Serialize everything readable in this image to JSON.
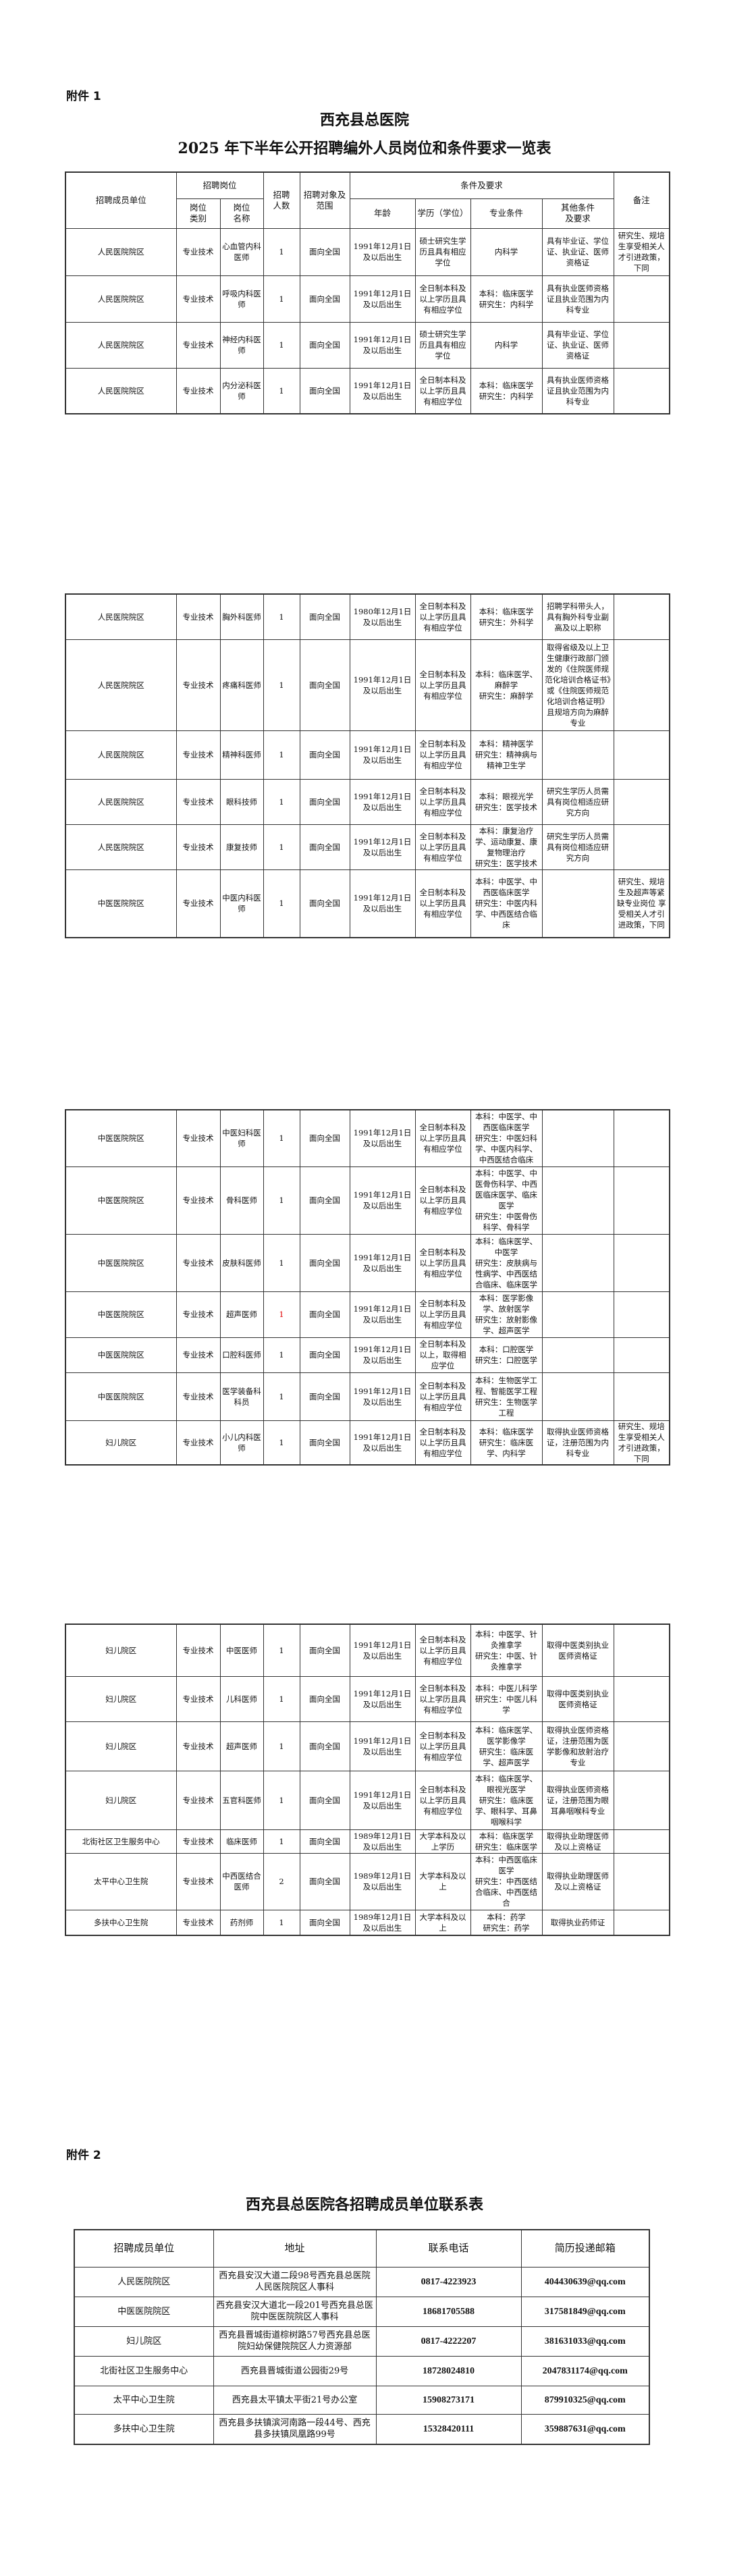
{
  "annex1": {
    "label": "附件 1",
    "title": "西充县总医院",
    "subtitle": "2025 年下半年公开招聘编外人员岗位和条件要求一览表",
    "headers": {
      "unit": "招聘成员单位",
      "post": "招聘岗位",
      "post_type": "岗位\n类别",
      "post_name": "岗位\n名称",
      "count": "招聘\n人数",
      "scope": "招聘对象及\n范围",
      "conditions": "条件及要求",
      "age": "年龄",
      "education": "学历（学位）",
      "major": "专业条件",
      "other": "其他条件\n及要求",
      "note": "备注"
    },
    "pages": [
      [
        {
          "unit": "人民医院院区",
          "type": "专业技术",
          "name": "心血管内科医师",
          "count": "1",
          "scope": "面向全国",
          "age": "1991年12月1日及以后出生",
          "edu": "硕士研究生学历且具有相应学位",
          "major": "内科学",
          "other": "具有毕业证、学位证、执业证、医师资格证",
          "note": "研究生、规培生享受相关人才引进政策，下同"
        },
        {
          "unit": "人民医院院区",
          "type": "专业技术",
          "name": "呼吸内科医师",
          "count": "1",
          "scope": "面向全国",
          "age": "1991年12月1日及以后出生",
          "edu": "全日制本科及以上学历且具有相应学位",
          "major": "本科：临床医学\n研究生：内科学",
          "other": "具有执业医师资格证且执业范围为内科专业",
          "note": ""
        },
        {
          "unit": "人民医院院区",
          "type": "专业技术",
          "name": "神经内科医师",
          "count": "1",
          "scope": "面向全国",
          "age": "1991年12月1日及以后出生",
          "edu": "硕士研究生学历且具有相应学位",
          "major": "内科学",
          "other": "具有毕业证、学位证、执业证、医师资格证",
          "note": ""
        },
        {
          "unit": "人民医院院区",
          "type": "专业技术",
          "name": "内分泌科医师",
          "count": "1",
          "scope": "面向全国",
          "age": "1991年12月1日及以后出生",
          "edu": "全日制本科及以上学历且具有相应学位",
          "major": "本科：临床医学\n研究生：内科学",
          "other": "具有执业医师资格证且执业范围为内科专业",
          "note": ""
        }
      ],
      [
        {
          "unit": "人民医院院区",
          "type": "专业技术",
          "name": "胸外科医师",
          "count": "1",
          "scope": "面向全国",
          "age": "1980年12月1日及以后出生",
          "edu": "全日制本科及以上学历且具有相应学位",
          "major": "本科：临床医学\n研究生：外科学",
          "other": "招聘学科带头人，具有胸外科专业副高及以上职称",
          "note": ""
        },
        {
          "unit": "人民医院院区",
          "type": "专业技术",
          "name": "疼痛科医师",
          "count": "1",
          "scope": "面向全国",
          "age": "1991年12月1日及以后出生",
          "edu": "全日制本科及以上学历且具有相应学位",
          "major": "本科：临床医学、麻醉学\n研究生：麻醉学",
          "other": "取得省级及以上卫生健康行政部门颁发的《住院医师规范化培训合格证书》或《住院医师规范化培训合格证明》且规培方向为麻醉专业",
          "note": ""
        },
        {
          "unit": "人民医院院区",
          "type": "专业技术",
          "name": "精神科医师",
          "count": "1",
          "scope": "面向全国",
          "age": "1991年12月1日及以后出生",
          "edu": "全日制本科及以上学历且具有相应学位",
          "major": "本科：精神医学\n研究生：精神病与精神卫生学",
          "other": "",
          "note": ""
        },
        {
          "unit": "人民医院院区",
          "type": "专业技术",
          "name": "眼科技师",
          "count": "1",
          "scope": "面向全国",
          "age": "1991年12月1日及以后出生",
          "edu": "全日制本科及以上学历且具有相应学位",
          "major": "本科：眼视光学\n研究生：医学技术",
          "other": "研究生学历人员需具有岗位相适应研究方向",
          "note": ""
        },
        {
          "unit": "人民医院院区",
          "type": "专业技术",
          "name": "康复技师",
          "count": "1",
          "scope": "面向全国",
          "age": "1991年12月1日及以后出生",
          "edu": "全日制本科及以上学历且具有相应学位",
          "major": "本科：康复治疗学、运动康复、康复物理治疗\n研究生：医学技术",
          "other": "研究生学历人员需具有岗位相适应研究方向",
          "note": ""
        },
        {
          "unit": "中医医院院区",
          "type": "专业技术",
          "name": "中医内科医师",
          "count": "1",
          "scope": "面向全国",
          "age": "1991年12月1日及以后出生",
          "edu": "全日制本科及以上学历且具有相应学位",
          "major": "本科：中医学、中西医临床医学\n研究生：中医内科学、中西医结合临床",
          "other": "",
          "note": "研究生、规培生及超声等紧缺专业岗位 享受相关人才引进政策，下同"
        }
      ],
      [
        {
          "unit": "中医医院院区",
          "type": "专业技术",
          "name": "中医妇科医师",
          "count": "1",
          "scope": "面向全国",
          "age": "1991年12月1日及以后出生",
          "edu": "全日制本科及以上学历且具有相应学位",
          "major": "本科：中医学、中西医临床医学\n研究生：中医妇科学、中医内科学、中西医结合临床",
          "other": "",
          "note": ""
        },
        {
          "unit": "中医医院院区",
          "type": "专业技术",
          "name": "骨科医师",
          "count": "1",
          "scope": "面向全国",
          "age": "1991年12月1日及以后出生",
          "edu": "全日制本科及以上学历且具有相应学位",
          "major": "本科：中医学、中医骨伤科学、中西医临床医学、临床医学\n研究生：中医骨伤科学、骨科学",
          "other": "",
          "note": ""
        },
        {
          "unit": "中医医院院区",
          "type": "专业技术",
          "name": "皮肤科医师",
          "count": "1",
          "scope": "面向全国",
          "age": "1991年12月1日及以后出生",
          "edu": "全日制本科及以上学历且具有相应学位",
          "major": "本科：临床医学、中医学\n研究生：皮肤病与性病学、中西医结合临床、临床医学",
          "other": "",
          "note": ""
        },
        {
          "unit": "中医医院院区",
          "type": "专业技术",
          "name": "超声医师",
          "count": "1",
          "scope": "面向全国",
          "age": "1991年12月1日及以后出生",
          "edu": "全日制本科及以上学历且具有相应学位",
          "major": "本科：医学影像学、放射医学\n研究生：放射影像学、超声医学",
          "other": "",
          "note": "",
          "count_color": "#e00000"
        },
        {
          "unit": "中医医院院区",
          "type": "专业技术",
          "name": "口腔科医师",
          "count": "1",
          "scope": "面向全国",
          "age": "1991年12月1日及以后出生",
          "edu": "全日制本科及以上，取得相应学位",
          "major": "本科：口腔医学\n研究生：口腔医学",
          "other": "",
          "note": ""
        },
        {
          "unit": "中医医院院区",
          "type": "专业技术",
          "name": "医学装备科科员",
          "count": "1",
          "scope": "面向全国",
          "age": "1991年12月1日及以后出生",
          "edu": "全日制本科及以上学历且具有相应学位",
          "major": "本科：生物医学工程、智能医学工程\n研究生：生物医学工程",
          "other": "",
          "note": ""
        },
        {
          "unit": "妇儿院区",
          "type": "专业技术",
          "name": "小儿内科医师",
          "count": "1",
          "scope": "面向全国",
          "age": "1991年12月1日及以后出生",
          "edu": "全日制本科及以上学历且具有相应学位",
          "major": "本科：临床医学\n研究生：临床医学、内科学",
          "other": "取得执业医师资格证，注册范围为内科专业",
          "note": "研究生、规培生享受相关人才引进政策，下同"
        }
      ],
      [
        {
          "unit": "妇儿院区",
          "type": "专业技术",
          "name": "中医医师",
          "count": "1",
          "scope": "面向全国",
          "age": "1991年12月1日及以后出生",
          "edu": "全日制本科及以上学历且具有相应学位",
          "major": "本科：中医学、针灸推拿学\n研究生：中医、针灸推拿学",
          "other": "取得中医类别执业医师资格证",
          "note": ""
        },
        {
          "unit": "妇儿院区",
          "type": "专业技术",
          "name": "儿科医师",
          "count": "1",
          "scope": "面向全国",
          "age": "1991年12月1日及以后出生",
          "edu": "全日制本科及以上学历且具有相应学位",
          "major": "本科：中医儿科学\n研究生：中医儿科学",
          "other": "取得中医类别执业医师资格证",
          "note": ""
        },
        {
          "unit": "妇儿院区",
          "type": "专业技术",
          "name": "超声医师",
          "count": "1",
          "scope": "面向全国",
          "age": "1991年12月1日及以后出生",
          "edu": "全日制本科及以上学历且具有相应学位",
          "major": "本科：临床医学、医学影像学\n研究生：临床医学、超声医学",
          "other": "取得执业医师资格证，注册范围为医学影像和放射治疗专业",
          "note": ""
        },
        {
          "unit": "妇儿院区",
          "type": "专业技术",
          "name": "五官科医师",
          "count": "1",
          "scope": "面向全国",
          "age": "1991年12月1日及以后出生",
          "edu": "全日制本科及以上学历且具有相应学位",
          "major": "本科：临床医学、眼视光医学\n研究生：临床医学、眼科学、耳鼻咽喉科学",
          "other": "取得执业医师资格证，注册范围为眼耳鼻咽喉科专业",
          "note": ""
        },
        {
          "unit": "北街社区卫生服务中心",
          "type": "专业技术",
          "name": "临床医师",
          "count": "1",
          "scope": "面向全国",
          "age": "1989年12月1日及以后出生",
          "edu": "大学本科及以上学历",
          "major": "本科：临床医学\n研究生：临床医学",
          "other": "取得执业助理医师及以上资格证",
          "note": ""
        },
        {
          "unit": "太平中心卫生院",
          "type": "专业技术",
          "name": "中西医结合医师",
          "count": "2",
          "scope": "面向全国",
          "age": "1989年12月1日及以后出生",
          "edu": "大学本科及以上",
          "major": "本科：中西医临床医学\n研究生：中西医结合临床、中西医结合",
          "other": "取得执业助理医师及以上资格证",
          "note": ""
        },
        {
          "unit": "多扶中心卫生院",
          "type": "专业技术",
          "name": "药剂师",
          "count": "1",
          "scope": "面向全国",
          "age": "1989年12月1日及以后出生",
          "edu": "大学本科及以上",
          "major": "本科：药学\n研究生：药学",
          "other": "取得执业药师证",
          "note": ""
        }
      ]
    ]
  },
  "annex2": {
    "label": "附件 2",
    "title": "西充县总医院各招聘成员单位联系表",
    "headers": {
      "unit": "招聘成员单位",
      "address": "地址",
      "phone": "联系电话",
      "email": "简历投递邮箱"
    },
    "rows": [
      {
        "unit": "人民医院院区",
        "address": "西充县安汉大道二段98号西充县总医院人民医院院区人事科",
        "phone": "0817-4223923",
        "email": "404430639@qq.com"
      },
      {
        "unit": "中医医院院区",
        "address": "西充县安汉大道北一段201号西充县总医院中医医院院区人事科",
        "phone": "18681705588",
        "email": "317581849@qq.com"
      },
      {
        "unit": "妇儿院区",
        "address": "西充县晋城街道棕树路57号西充县总医院妇幼保健院院区人力资源部",
        "phone": "0817-4222207",
        "email": "381631033@qq.com"
      },
      {
        "unit": "北街社区卫生服务中心",
        "address": "西充县晋城街道公园街29号",
        "phone": "18728024810",
        "email": "2047831174@qq.com"
      },
      {
        "unit": "太平中心卫生院",
        "address": "西充县太平镇太平街21号办公室",
        "phone": "15908273171",
        "email": "879910325@qq.com"
      },
      {
        "unit": "多扶中心卫生院",
        "address": "西充县多扶镇滨河南路一段44号、西充县多扶镇凤凰路99号",
        "phone": "15328420111",
        "email": "359887631@qq.com"
      }
    ]
  }
}
